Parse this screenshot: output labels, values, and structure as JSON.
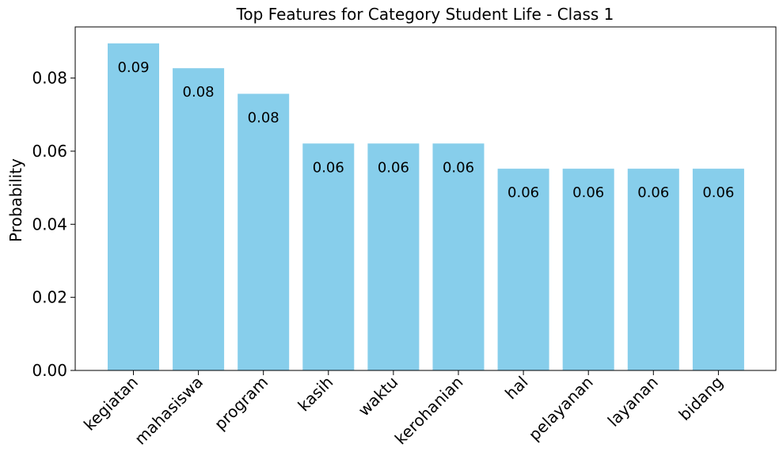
{
  "chart_data": {
    "type": "bar",
    "title": "Top Features for Category Student Life - Class 1",
    "xlabel": "",
    "ylabel": "Probability",
    "categories": [
      "kegiatan",
      "mahasiswa",
      "program",
      "kasih",
      "waktu",
      "kerohanian",
      "hal",
      "pelayanan",
      "layanan",
      "bidang"
    ],
    "values": [
      0.0895,
      0.0827,
      0.0757,
      0.0621,
      0.0621,
      0.0621,
      0.0552,
      0.0552,
      0.0552,
      0.0552
    ],
    "data_labels": [
      "0.09",
      "0.08",
      "0.08",
      "0.06",
      "0.06",
      "0.06",
      "0.06",
      "0.06",
      "0.06",
      "0.06"
    ],
    "ylim": [
      0,
      0.094
    ],
    "yticks": [
      "0.00",
      "0.02",
      "0.04",
      "0.06",
      "0.08"
    ],
    "ytick_values": [
      0,
      0.02,
      0.04,
      0.06,
      0.08
    ],
    "bar_color": "#87CEEB",
    "grid": false
  }
}
